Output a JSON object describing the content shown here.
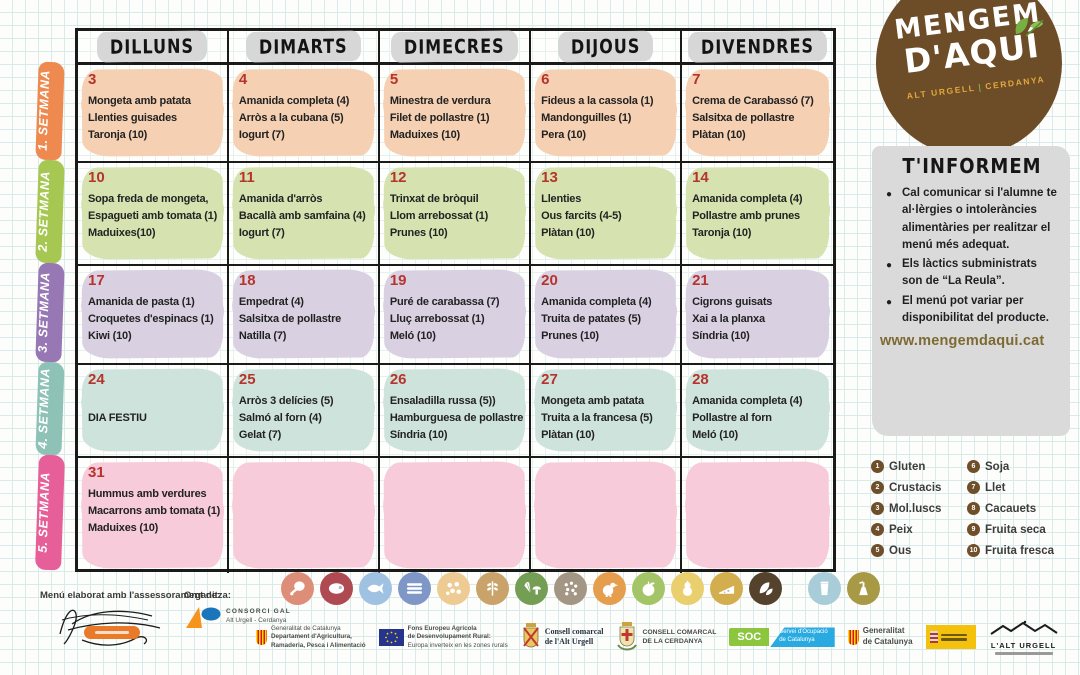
{
  "calendar": {
    "day_headers": [
      "DILLUNS",
      "DIMARTS",
      "DIMECRES",
      "DIJOUS",
      "DIVENDRES"
    ],
    "weeks": [
      {
        "label": "1. SETMANA",
        "label_color": "#ee8a50",
        "cell_color": "#f5d0b2",
        "days": [
          {
            "num": "3",
            "lines": [
              "Mongeta amb patata",
              "Llenties guisades",
              "Taronja (10)"
            ]
          },
          {
            "num": "4",
            "lines": [
              "Amanida completa (4)",
              "Arròs a la cubana (5)",
              "Iogurt (7)"
            ]
          },
          {
            "num": "5",
            "lines": [
              "Minestra de verdura",
              "Filet de pollastre (1)",
              "Maduixes (10)"
            ]
          },
          {
            "num": "6",
            "lines": [
              "Fideus a la cassola (1)",
              "Mandonguilles (1)",
              "Pera (10)"
            ]
          },
          {
            "num": "7",
            "lines": [
              "Crema de Carabassó (7)",
              "Salsitxa de pollastre",
              "Plàtan  (10)"
            ]
          }
        ]
      },
      {
        "label": "2. SETMANA",
        "label_color": "#a6c853",
        "cell_color": "#d6e3b0",
        "days": [
          {
            "num": "10",
            "lines": [
              "Sopa freda de mongeta,",
              "Espagueti amb tomata (1)",
              "Maduixes(10)"
            ]
          },
          {
            "num": "11",
            "lines": [
              "Amanida d'arròs",
              "Bacallà amb samfaina (4)",
              "Iogurt (7)"
            ]
          },
          {
            "num": "12",
            "lines": [
              "Trinxat de bròquil",
              "Llom arrebossat (1)",
              "Prunes (10)"
            ]
          },
          {
            "num": "13",
            "lines": [
              "Llenties",
              "Ous farcits (4-5)",
              "Plàtan (10)"
            ]
          },
          {
            "num": "14",
            "lines": [
              "Amanida completa (4)",
              "Pollastre amb prunes",
              "Taronja (10)"
            ]
          }
        ]
      },
      {
        "label": "3. SETMANA",
        "label_color": "#9878b4",
        "cell_color": "#d9d0e2",
        "days": [
          {
            "num": "17",
            "lines": [
              "Amanida de pasta (1)",
              "Croquetes d'espinacs (1)",
              "Kiwi (10)"
            ]
          },
          {
            "num": "18",
            "lines": [
              "Empedrat (4)",
              "Salsitxa de pollastre",
              "Natilla (7)"
            ]
          },
          {
            "num": "19",
            "lines": [
              "Puré de carabassa (7)",
              "Lluç arrebossat (1)",
              "Meló (10)"
            ]
          },
          {
            "num": "20",
            "lines": [
              "Amanida completa (4)",
              "Truita de patates (5)",
              "Prunes (10)"
            ]
          },
          {
            "num": "21",
            "lines": [
              "Cigrons guisats",
              "Xai a la planxa",
              "Síndria (10)"
            ]
          }
        ]
      },
      {
        "label": "4. SETMANA",
        "label_color": "#8ec2b6",
        "cell_color": "#cfe3dd",
        "days": [
          {
            "num": "24",
            "lines": [
              "",
              "DIA FESTIU"
            ]
          },
          {
            "num": "25",
            "lines": [
              "Arròs 3 delícies (5)",
              "Salmó al forn (4)",
              "Gelat  (7)"
            ]
          },
          {
            "num": "26",
            "lines": [
              "Ensaladilla russa (5))",
              "Hamburguesa de pollastre",
              "Síndria (10)"
            ]
          },
          {
            "num": "27",
            "lines": [
              "Mongeta amb patata",
              "Truita a la francesa (5)",
              "Plàtan (10)"
            ]
          },
          {
            "num": "28",
            "lines": [
              "Amanida completa (4)",
              "Pollastre al forn",
              "Meló  (10)"
            ]
          }
        ]
      },
      {
        "label": "5. SETMANA",
        "label_color": "#e75f99",
        "cell_color": "#f7cbd9",
        "days": [
          {
            "num": "31",
            "lines": [
              "Hummus amb verdures",
              "Macarrons amb tomata (1)",
              "Maduixes (10)"
            ]
          },
          {
            "num": "",
            "lines": []
          },
          {
            "num": "",
            "lines": []
          },
          {
            "num": "",
            "lines": []
          },
          {
            "num": "",
            "lines": []
          }
        ]
      }
    ]
  },
  "logo": {
    "line1": "MENGEM",
    "line2": "D'AQUÍ",
    "region1": "ALT URGELL",
    "divider": "|",
    "region2": "CERDANYA",
    "circle_color": "#6d4c28",
    "accent_color": "#e2a93c",
    "leaf_color": "#76b043"
  },
  "info_box": {
    "title": "T'INFORMEM",
    "bullets": [
      "Cal comunicar si l'alumne te al·lèrgies o intoleràncies alimentàries per realitzar el menú més adequat.",
      "Els làctics subministrats son de “La Reula”.",
      "El menú pot variar per disponibilitat del producte."
    ],
    "website": "www.mengemdaqui.cat",
    "website_color": "#7d6a33"
  },
  "allergens": {
    "badge_color": "#6f4e2a",
    "items": [
      {
        "num": "1",
        "label": "Gluten"
      },
      {
        "num": "2",
        "label": "Crustacis"
      },
      {
        "num": "3",
        "label": "Mol.luscs"
      },
      {
        "num": "4",
        "label": "Peix"
      },
      {
        "num": "5",
        "label": "Ous"
      },
      {
        "num": "6",
        "label": "Soja"
      },
      {
        "num": "7",
        "label": "Llet"
      },
      {
        "num": "8",
        "label": "Cacauets"
      },
      {
        "num": "9",
        "label": "Fruita seca"
      },
      {
        "num": "10",
        "label": "Fruita fresca"
      }
    ]
  },
  "footer": {
    "advisory_label": "Menú elaborat amb l'assessorament de:",
    "organizer_label": "Organitza:",
    "organizer_name": "CONSORCI GAL",
    "organizer_sub": "Alt Urgell - Cerdanya",
    "food_icons": [
      {
        "name": "drumstick-icon",
        "color": "#dd8d78"
      },
      {
        "name": "red-meat-icon",
        "color": "#b04a52"
      },
      {
        "name": "fish-icon",
        "color": "#9fc2e2"
      },
      {
        "name": "sardines-icon",
        "color": "#7e97c6"
      },
      {
        "name": "pasta-icon",
        "color": "#edcb92"
      },
      {
        "name": "cereals-icon",
        "color": "#c9a36a"
      },
      {
        "name": "vegetables-icon",
        "color": "#739e53"
      },
      {
        "name": "legumes-icon",
        "color": "#a39684"
      },
      {
        "name": "poultry-icon",
        "color": "#e59e4d"
      },
      {
        "name": "apple-icon",
        "color": "#a4c468"
      },
      {
        "name": "fruit-icon",
        "color": "#e9cf6e"
      },
      {
        "name": "cheese-icon",
        "color": "#d2ae4e"
      },
      {
        "name": "greens-icon",
        "color": "#54422c"
      },
      {
        "name": "milk-icon",
        "color": "#a9cdd8",
        "separated": true
      },
      {
        "name": "oil-icon",
        "color": "#a89a45"
      }
    ],
    "logos": [
      {
        "name": "generalitat-agricultura",
        "lines": [
          "Generalitat de Catalunya",
          "Departament d'Agricultura,",
          "Ramaderia, Pesca i Alimentació"
        ]
      },
      {
        "name": "eu-feader",
        "lines": [
          "Fons Europeu Agrícola",
          "de Desenvolupament Rural:",
          "Europa inverteix en les zones rurals"
        ]
      },
      {
        "name": "consell-alt-urgell",
        "lines": [
          "Consell comarcal",
          "de l'Alt Urgell"
        ]
      },
      {
        "name": "consell-cerdanya",
        "lines": [
          "CONSELL COMARCAL",
          "DE LA CERDANYA"
        ]
      },
      {
        "name": "soc",
        "lines": [
          "SOC",
          "Servei d'Ocupació",
          "de Catalunya"
        ]
      },
      {
        "name": "generalitat",
        "lines": [
          "Generalitat",
          "de Catalunya"
        ]
      },
      {
        "name": "gobierno-espana",
        "lines": []
      },
      {
        "name": "alt-urgell-tourism",
        "lines": [
          "L'ALT URGELL"
        ]
      }
    ]
  }
}
